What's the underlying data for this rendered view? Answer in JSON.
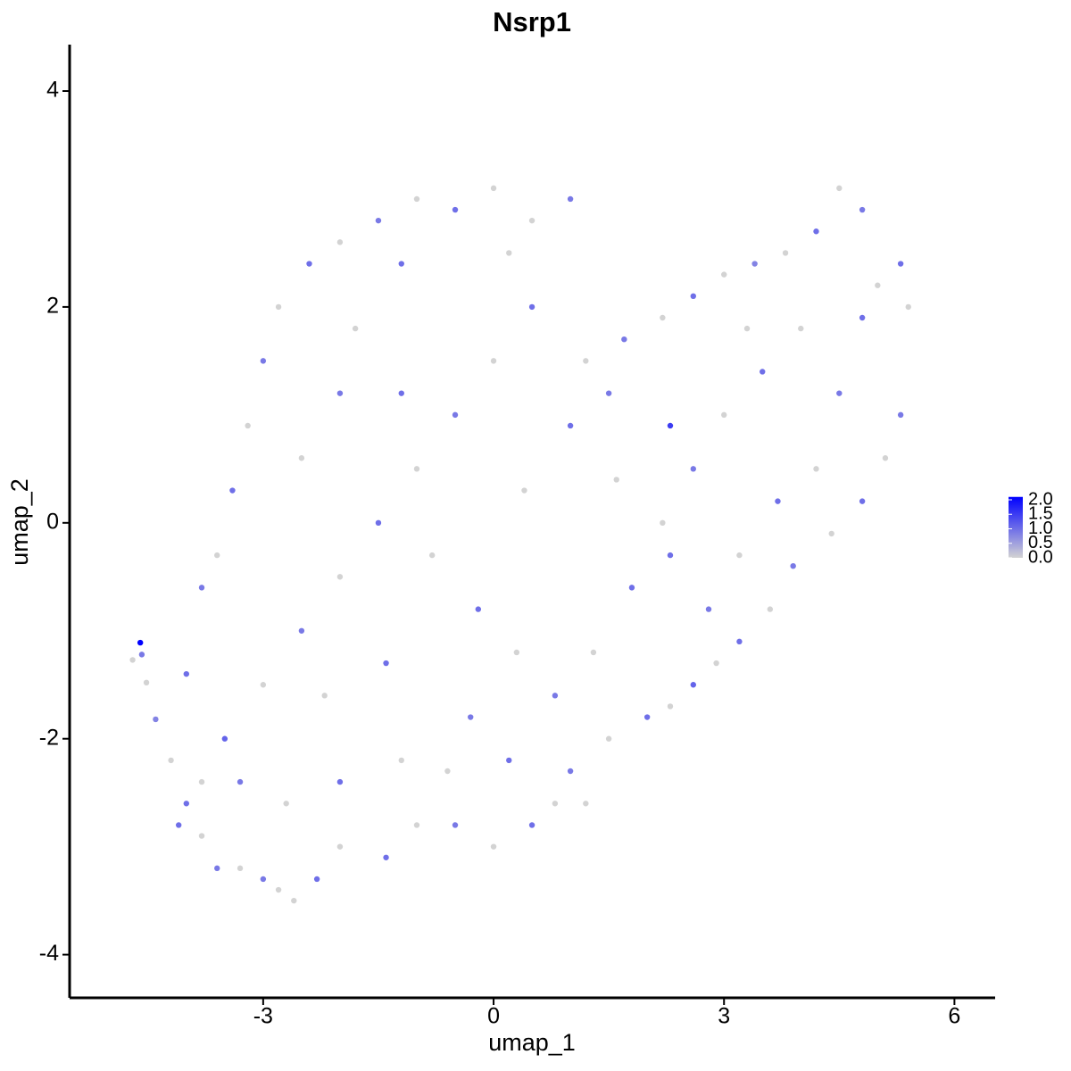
{
  "chart_data": {
    "type": "scatter",
    "title": "Nsrp1",
    "x_label": "umap_1",
    "y_label": "umap_2",
    "xlim": [
      -5.52,
      6.53
    ],
    "ylim": [
      -4.4,
      4.43
    ],
    "xticks": [
      -3,
      0,
      3,
      6
    ],
    "yticks": [
      -4,
      -2,
      0,
      2,
      4
    ],
    "grid": false,
    "color_low": "#d3d3d3",
    "color_high": "#0000ff",
    "clim": [
      0,
      2.1
    ],
    "cticks": [
      {
        "value": 0,
        "label": "0.0"
      },
      {
        "value": 0.5,
        "label": "0.5"
      },
      {
        "value": 1,
        "label": "1.0"
      },
      {
        "value": 1.5,
        "label": "1.5"
      },
      {
        "value": 2,
        "label": "2.0"
      }
    ],
    "x": [
      -4.6,
      -4.7,
      -4.58,
      -4.52,
      -4.4,
      -4.2,
      -4.0,
      -3.8,
      -3.6,
      -3.3,
      -3.0,
      -2.8,
      -2.6,
      -2.3,
      -2.0,
      -1.4,
      -1.0,
      -0.5,
      0.0,
      0.5,
      0.8,
      1.0,
      1.5,
      2.0,
      2.3,
      2.6,
      2.9,
      3.2,
      3.6,
      3.9,
      4.4,
      4.8,
      5.1,
      5.3,
      5.4,
      5.3,
      4.8,
      4.5,
      4.2,
      3.8,
      3.4,
      3.0,
      2.6,
      2.2,
      1.7,
      1.2,
      1.0,
      0.5,
      0.0,
      -0.5,
      -1.0,
      -1.5,
      -2.0,
      -2.4,
      -2.8,
      -3.0,
      -3.2,
      -3.4,
      -3.6,
      -3.8,
      -4.0,
      -3.5,
      -3.0,
      -2.5,
      -2.0,
      -1.5,
      -1.0,
      -0.5,
      0.0,
      0.5,
      -1.8,
      -1.2,
      -0.8,
      -0.2,
      0.3,
      0.8,
      1.3,
      1.8,
      2.2,
      2.6,
      3.0,
      3.5,
      4.0,
      4.5,
      4.2,
      3.7,
      3.2,
      2.8,
      2.3,
      1.6,
      1.0,
      0.4,
      -0.3,
      -1.2,
      -2.0,
      -2.7,
      -3.3,
      -2.2,
      -1.4,
      -0.6,
      0.2,
      1.2,
      2.3,
      -2.5,
      -2.0,
      -1.2,
      0.2,
      4.8,
      5.0,
      3.3,
      1.5,
      -3.8,
      -4.1
    ],
    "y": [
      -1.11,
      -1.27,
      -1.22,
      -1.48,
      -1.82,
      -2.2,
      -2.6,
      -2.9,
      -3.2,
      -3.2,
      -3.3,
      -3.4,
      -3.5,
      -3.3,
      -3.0,
      -3.1,
      -2.8,
      -2.8,
      -3.0,
      -2.8,
      -2.6,
      -2.3,
      -2.0,
      -1.8,
      -1.7,
      -1.5,
      -1.3,
      -1.1,
      -0.8,
      -0.4,
      -0.1,
      0.2,
      0.6,
      1.0,
      2.0,
      2.4,
      2.9,
      3.1,
      2.7,
      2.5,
      2.4,
      2.3,
      2.1,
      1.9,
      1.7,
      1.5,
      3.0,
      2.8,
      3.1,
      2.9,
      3.0,
      2.8,
      2.6,
      2.4,
      2.0,
      1.5,
      0.9,
      0.3,
      -0.3,
      -0.6,
      -1.4,
      -2.0,
      -1.5,
      -1.0,
      -0.5,
      0.0,
      0.5,
      1.0,
      1.5,
      2.0,
      1.8,
      1.2,
      -0.3,
      -0.8,
      -1.2,
      -1.6,
      -1.2,
      -0.6,
      0.0,
      0.5,
      1.0,
      1.4,
      1.8,
      1.2,
      0.5,
      0.2,
      -0.3,
      -0.8,
      -0.3,
      0.4,
      0.9,
      0.3,
      -1.8,
      -2.2,
      -2.4,
      -2.6,
      -2.4,
      -1.6,
      -1.3,
      -2.3,
      -2.2,
      -2.6,
      0.9,
      0.6,
      1.2,
      2.4,
      2.5,
      1.9,
      2.2,
      1.8,
      1.2,
      -2.4,
      -2.8
    ],
    "values": [
      2.1,
      0,
      0.9,
      0,
      0.8,
      0,
      1.0,
      0,
      0.9,
      0,
      0.9,
      0,
      0,
      1.0,
      0,
      1.0,
      0,
      0.9,
      0,
      1.0,
      0,
      0.9,
      0,
      1.0,
      0,
      1.1,
      0,
      1.0,
      0,
      0.9,
      0,
      1.0,
      0,
      0.9,
      0,
      1.0,
      0.9,
      0,
      1.0,
      0,
      0.8,
      0,
      1.0,
      0,
      0.9,
      0,
      0.9,
      0,
      0,
      1.0,
      0,
      0.9,
      0,
      1.0,
      0,
      0.9,
      0,
      1.0,
      0,
      0.9,
      1.0,
      1.1,
      0,
      0.9,
      0,
      1.0,
      0,
      0.9,
      0,
      1.0,
      0,
      1.0,
      0,
      1.0,
      0,
      0.9,
      0,
      1.0,
      0,
      0.9,
      0,
      1.0,
      0,
      0.9,
      0,
      1.0,
      0,
      0.9,
      1.0,
      0,
      1.0,
      0,
      0.9,
      0,
      1.0,
      0,
      0.9,
      0,
      1.0,
      0,
      1.0,
      0,
      1.5,
      0,
      0.9,
      1.0,
      0,
      1.0,
      0,
      0,
      0.9,
      0,
      1.0
    ]
  }
}
